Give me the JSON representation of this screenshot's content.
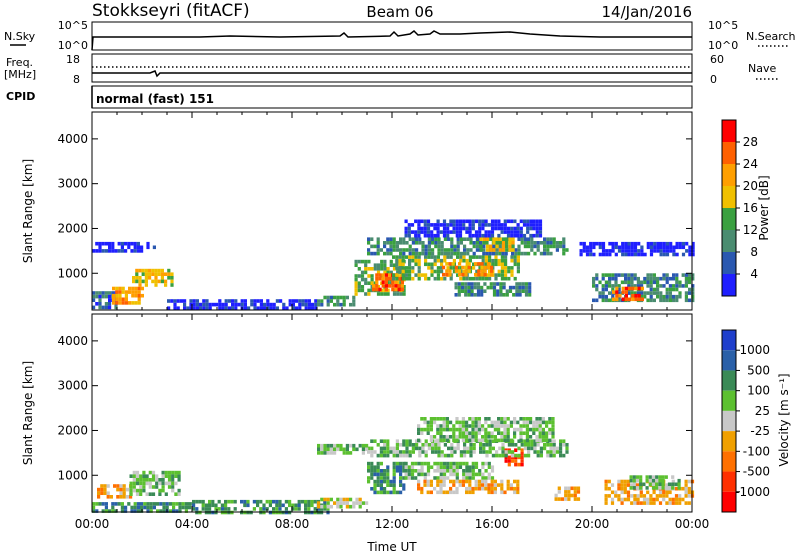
{
  "header": {
    "station": "Stokkseyri (fitACF)",
    "beam": "Beam 06",
    "date": "14/Jan/2016"
  },
  "noise_panel": {
    "left_label": "N.Sky",
    "right_label": "N.Search",
    "left_ticks": [
      "10^5",
      "10^0"
    ],
    "right_ticks": [
      "10^5",
      "10^0"
    ]
  },
  "freq_panel": {
    "left_label_line1": "Freq.",
    "left_label_line2": "[MHz]",
    "right_label": "Nave",
    "left_ticks": [
      "18",
      "8"
    ],
    "right_ticks": [
      "60",
      "0"
    ]
  },
  "cpid": {
    "label": "CPID",
    "value": "normal (fast) 151"
  },
  "colors": {
    "power_scale": [
      "#1f1fff",
      "#2a58b0",
      "#4a8c70",
      "#3aa040",
      "#f0c000",
      "#ff9f00",
      "#ff6000",
      "#ff0000"
    ],
    "velocity_scale": [
      "#1f3fcc",
      "#2a60a8",
      "#3a8a56",
      "#5cc030",
      "#c8c8c8",
      "#f0a000",
      "#ff7000",
      "#ff3000",
      "#ff0000"
    ]
  },
  "chart_data": [
    {
      "type": "heatmap",
      "title": "Power",
      "xlabel": "",
      "ylabel": "Slant Range [km]",
      "xlim": [
        0,
        24
      ],
      "ylim": [
        180,
        4600
      ],
      "x_ticks": [
        "00:00",
        "04:00",
        "08:00",
        "12:00",
        "16:00",
        "20:00",
        "00:00"
      ],
      "y_ticks": [
        1000,
        2000,
        3000,
        4000
      ],
      "colorbar": {
        "label": "Power [dB]",
        "ticks": [
          4,
          8,
          12,
          16,
          20,
          24,
          28
        ]
      },
      "regions": [
        {
          "t0": 0.0,
          "t1": 1.0,
          "r0": 200,
          "r1": 600,
          "level": 2
        },
        {
          "t0": 0.8,
          "t1": 2.0,
          "r0": 300,
          "r1": 700,
          "level": 6
        },
        {
          "t0": 1.6,
          "t1": 3.2,
          "r0": 700,
          "r1": 1100,
          "level": 5
        },
        {
          "t0": 0.0,
          "t1": 2.5,
          "r0": 1500,
          "r1": 1700,
          "level": 1
        },
        {
          "t0": 3.0,
          "t1": 9.0,
          "r0": 200,
          "r1": 420,
          "level": 1
        },
        {
          "t0": 9.0,
          "t1": 10.5,
          "r0": 300,
          "r1": 500,
          "level": 3
        },
        {
          "t0": 10.5,
          "t1": 12.5,
          "r0": 500,
          "r1": 1300,
          "level": 4
        },
        {
          "t0": 11.2,
          "t1": 12.4,
          "r0": 600,
          "r1": 1000,
          "level": 7
        },
        {
          "t0": 12.0,
          "t1": 17.0,
          "r0": 900,
          "r1": 1400,
          "level": 4
        },
        {
          "t0": 14.0,
          "t1": 16.0,
          "r0": 1000,
          "r1": 1250,
          "level": 6
        },
        {
          "t0": 11.0,
          "t1": 19.0,
          "r0": 1400,
          "r1": 1800,
          "level": 3
        },
        {
          "t0": 15.5,
          "t1": 16.8,
          "r0": 1500,
          "r1": 1800,
          "level": 5
        },
        {
          "t0": 12.5,
          "t1": 18.0,
          "r0": 1800,
          "r1": 2200,
          "level": 1
        },
        {
          "t0": 14.5,
          "t1": 17.5,
          "r0": 500,
          "r1": 800,
          "level": 3
        },
        {
          "t0": 19.5,
          "t1": 24.0,
          "r0": 1400,
          "r1": 1700,
          "level": 1
        },
        {
          "t0": 20.0,
          "t1": 24.0,
          "r0": 400,
          "r1": 1000,
          "level": 3
        },
        {
          "t0": 20.8,
          "t1": 22.0,
          "r0": 450,
          "r1": 700,
          "level": 7
        }
      ]
    },
    {
      "type": "heatmap",
      "title": "Velocity",
      "xlabel": "Time UT",
      "ylabel": "Slant Range [km]",
      "xlim": [
        0,
        24
      ],
      "ylim": [
        180,
        4600
      ],
      "x_ticks": [
        "00:00",
        "04:00",
        "08:00",
        "12:00",
        "16:00",
        "20:00",
        "00:00"
      ],
      "y_ticks": [
        1000,
        2000,
        3000,
        4000
      ],
      "colorbar": {
        "label": "Velocity [m s⁻¹]",
        "ticks": [
          "1000",
          "500",
          "100",
          "25",
          "-25",
          "-100",
          "-500",
          "-1000"
        ]
      },
      "regions": [
        {
          "t0": 0.0,
          "t1": 4.0,
          "r0": 200,
          "r1": 400,
          "level": 3
        },
        {
          "t0": 0.2,
          "t1": 1.5,
          "r0": 500,
          "r1": 800,
          "level": 6
        },
        {
          "t0": 1.5,
          "t1": 3.5,
          "r0": 600,
          "r1": 1100,
          "level": 4
        },
        {
          "t0": 4.0,
          "t1": 9.5,
          "r0": 200,
          "r1": 450,
          "level": 3
        },
        {
          "t0": 9.0,
          "t1": 11.0,
          "r0": 300,
          "r1": 500,
          "level": 5
        },
        {
          "t0": 11.0,
          "t1": 12.5,
          "r0": 600,
          "r1": 1300,
          "level": 3
        },
        {
          "t0": 12.5,
          "t1": 16.0,
          "r0": 900,
          "r1": 1300,
          "level": 4
        },
        {
          "t0": 13.0,
          "t1": 17.0,
          "r0": 600,
          "r1": 900,
          "level": 6
        },
        {
          "t0": 16.5,
          "t1": 17.2,
          "r0": 1200,
          "r1": 1600,
          "level": 8
        },
        {
          "t0": 11.0,
          "t1": 19.0,
          "r0": 1400,
          "r1": 1800,
          "level": 4
        },
        {
          "t0": 9.0,
          "t1": 11.0,
          "r0": 1500,
          "r1": 1700,
          "level": 4
        },
        {
          "t0": 13.0,
          "t1": 18.5,
          "r0": 1800,
          "r1": 2300,
          "level": 4
        },
        {
          "t0": 18.5,
          "t1": 19.5,
          "r0": 500,
          "r1": 750,
          "level": 6
        },
        {
          "t0": 20.5,
          "t1": 24.0,
          "r0": 400,
          "r1": 900,
          "level": 6
        },
        {
          "t0": 21.5,
          "t1": 23.5,
          "r0": 700,
          "r1": 1000,
          "level": 4
        }
      ]
    }
  ]
}
